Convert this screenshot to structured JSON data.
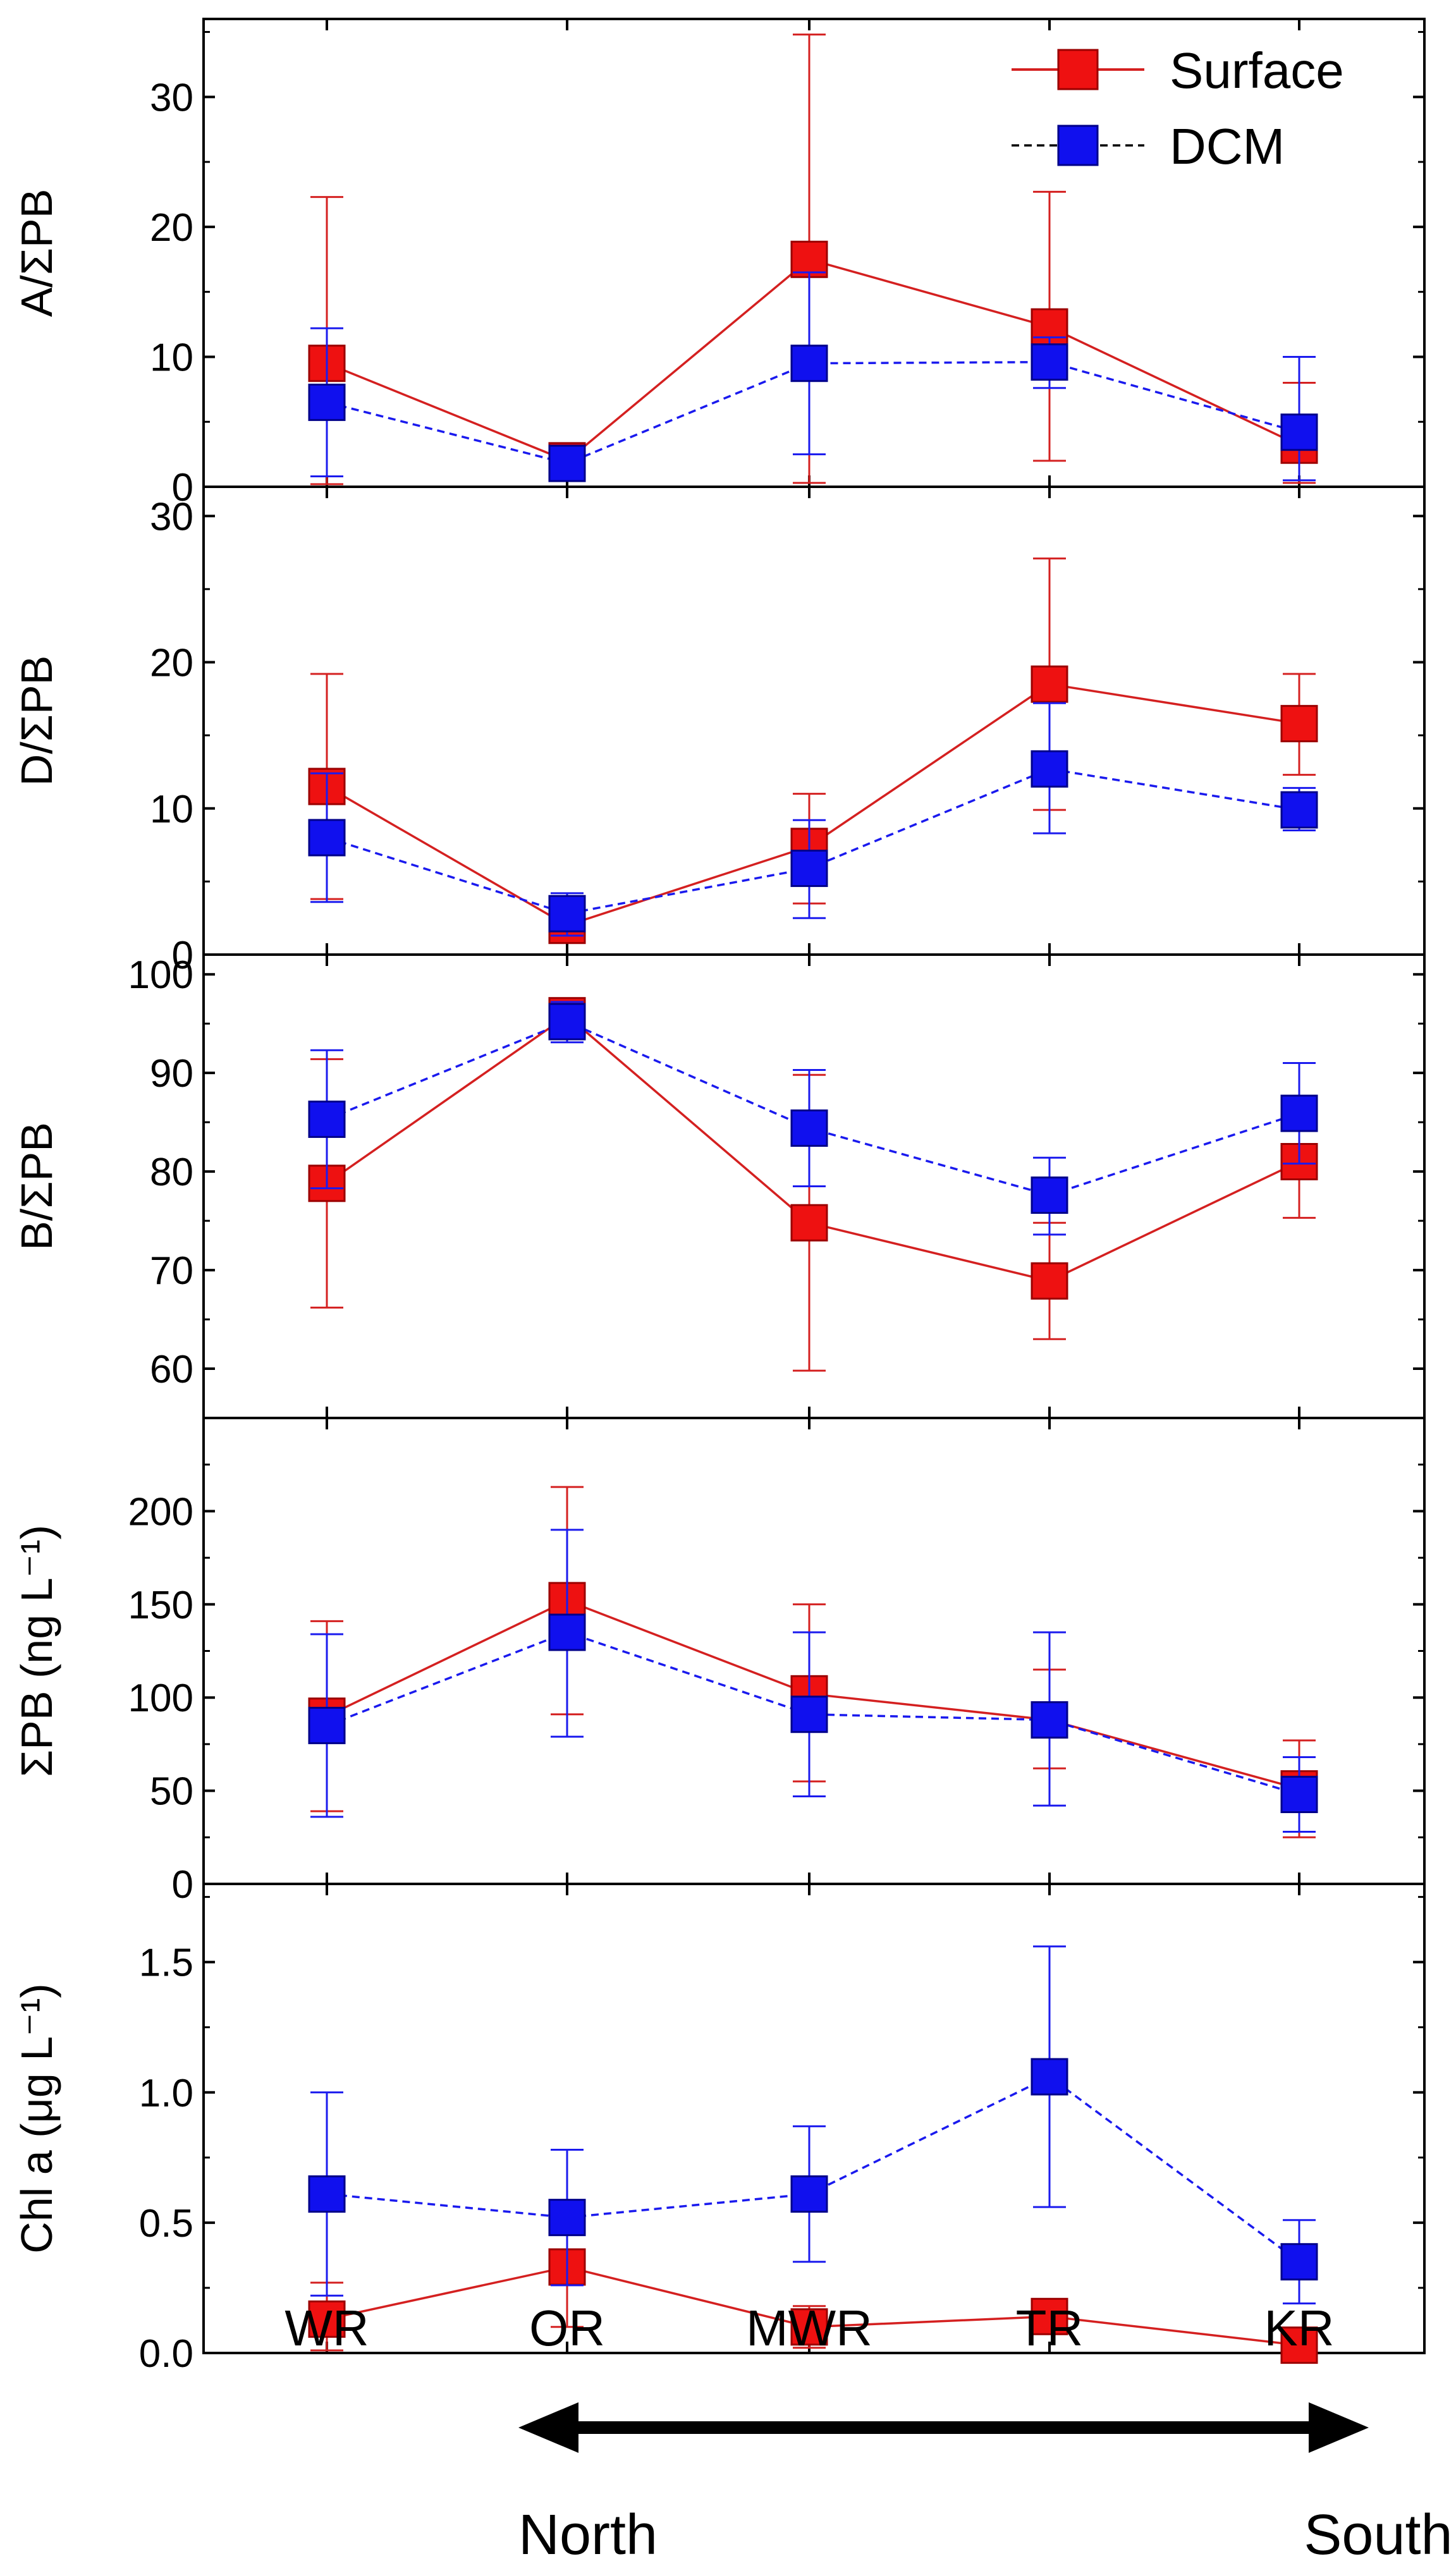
{
  "chart_data": {
    "type": "line",
    "categories": [
      "WR",
      "OR",
      "MWR",
      "TR",
      "KR"
    ],
    "legend": {
      "placement": "top-right",
      "entries": [
        "Surface",
        "DCM"
      ]
    },
    "series_style": {
      "Surface": {
        "color": "#d42020",
        "line": "solid",
        "marker": "square"
      },
      "DCM": {
        "color": "#1a1aee",
        "line": "dashed",
        "marker": "square"
      }
    },
    "direction": {
      "left_label": "North",
      "right_label": "South"
    },
    "panels": [
      {
        "ylabel": "A/ΣPB",
        "ylim": [
          0,
          36
        ],
        "yticks": [
          0,
          10,
          20,
          30
        ],
        "tick_labels": [
          "0",
          "10",
          "20",
          "30"
        ],
        "series": [
          {
            "name": "Surface",
            "values": [
              9.5,
              2.0,
              17.5,
              12.3,
              3.2
            ],
            "err_low": [
              0.2,
              1.8,
              0.3,
              2.0,
              0.3
            ],
            "err_high": [
              22.3,
              2.6,
              34.8,
              22.7,
              8.0
            ]
          },
          {
            "name": "DCM",
            "values": [
              6.5,
              1.8,
              9.5,
              9.6,
              4.2
            ],
            "err_low": [
              0.8,
              1.2,
              2.5,
              7.6,
              0.5
            ],
            "err_high": [
              12.2,
              2.5,
              16.5,
              11.5,
              10.0
            ]
          }
        ]
      },
      {
        "ylabel": "D/ΣPB",
        "ylim": [
          0,
          32
        ],
        "yticks": [
          0,
          10,
          20,
          30
        ],
        "tick_labels": [
          "0",
          "10",
          "20",
          "30"
        ],
        "series": [
          {
            "name": "Surface",
            "values": [
              11.5,
              2.0,
              7.4,
              18.5,
              15.8
            ],
            "err_low": [
              3.8,
              1.5,
              3.5,
              9.9,
              12.3
            ],
            "err_high": [
              19.2,
              2.6,
              11.0,
              27.1,
              19.2
            ]
          },
          {
            "name": "DCM",
            "values": [
              8.0,
              2.8,
              5.9,
              12.7,
              9.9
            ],
            "err_low": [
              3.6,
              1.3,
              2.5,
              8.3,
              8.5
            ],
            "err_high": [
              12.4,
              4.2,
              9.2,
              17.2,
              11.4
            ]
          }
        ]
      },
      {
        "ylabel": "B/ΣPB",
        "ylim": [
          55,
          102
        ],
        "yticks": [
          60,
          70,
          80,
          90,
          100
        ],
        "tick_labels": [
          "60",
          "70",
          "80",
          "90",
          "100"
        ],
        "series": [
          {
            "name": "Surface",
            "values": [
              78.8,
              95.8,
              74.8,
              68.9,
              81.0
            ],
            "err_low": [
              66.2,
              94.8,
              59.8,
              63.0,
              75.3
            ],
            "err_high": [
              91.4,
              96.9,
              89.8,
              74.8,
              86.8
            ]
          },
          {
            "name": "DCM",
            "values": [
              85.3,
              95.2,
              84.4,
              77.6,
              85.9
            ],
            "err_low": [
              78.3,
              93.1,
              78.5,
              73.6,
              80.8
            ],
            "err_high": [
              92.3,
              97.2,
              90.3,
              81.4,
              91.0
            ]
          }
        ]
      },
      {
        "ylabel": "ΣPB (ng L⁻¹)",
        "ylim": [
          0,
          250
        ],
        "yticks": [
          0,
          50,
          100,
          150,
          200
        ],
        "tick_labels": [
          "0",
          "50",
          "100",
          "150",
          "200"
        ],
        "series": [
          {
            "name": "Surface",
            "values": [
              90,
              152,
              102,
              88,
              51
            ],
            "err_low": [
              39,
              91,
              55,
              62,
              25
            ],
            "err_high": [
              141,
              213,
              150,
              115,
              77
            ]
          },
          {
            "name": "DCM",
            "values": [
              85,
              135,
              91,
              88,
              48
            ],
            "err_low": [
              36,
              79,
              47,
              42,
              28
            ],
            "err_high": [
              134,
              190,
              135,
              135,
              68
            ]
          }
        ]
      },
      {
        "ylabel": "Chl a (μg L⁻¹)",
        "ylim": [
          0,
          1.8
        ],
        "yticks": [
          0.0,
          0.5,
          1.0,
          1.5
        ],
        "tick_labels": [
          "0.0",
          "0.5",
          "1.0",
          "1.5"
        ],
        "series": [
          {
            "name": "Surface",
            "values": [
              0.13,
              0.33,
              0.1,
              0.14,
              0.03
            ],
            "err_low": [
              0.01,
              0.1,
              0.02,
              0.1,
              0.01
            ],
            "err_high": [
              0.27,
              0.57,
              0.18,
              0.19,
              0.05
            ]
          },
          {
            "name": "DCM",
            "values": [
              0.61,
              0.52,
              0.61,
              1.06,
              0.35
            ],
            "err_low": [
              0.22,
              0.26,
              0.35,
              0.56,
              0.19
            ],
            "err_high": [
              1.0,
              0.78,
              0.87,
              1.56,
              0.51
            ]
          }
        ]
      }
    ]
  }
}
